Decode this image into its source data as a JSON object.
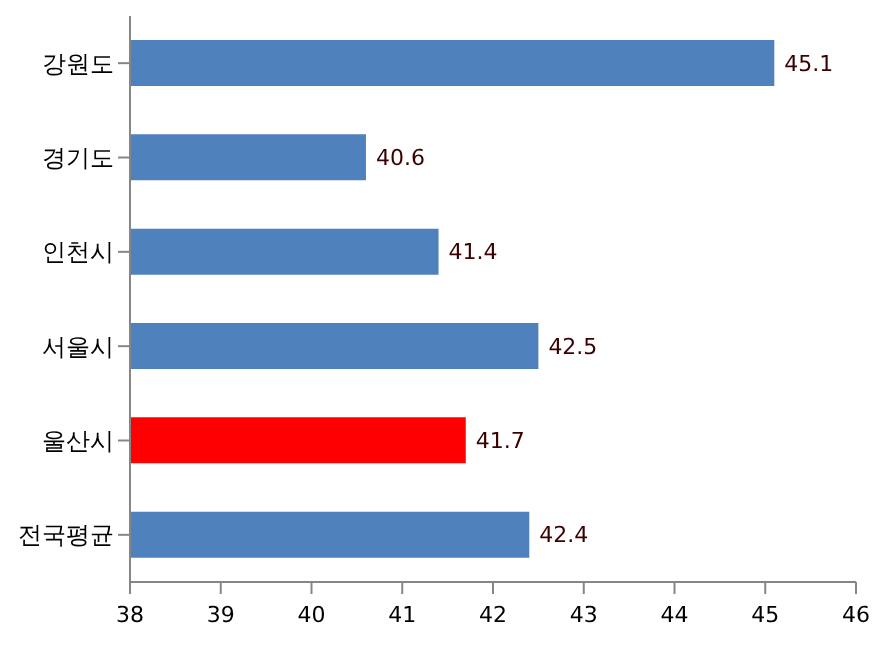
{
  "chart_data": {
    "type": "bar",
    "orientation": "horizontal",
    "categories": [
      "강원도",
      "경기도",
      "인천시",
      "서울시",
      "울산시",
      "전국평균"
    ],
    "values": [
      45.1,
      40.6,
      41.4,
      42.5,
      41.7,
      42.4
    ],
    "colors": [
      "#4f81bd",
      "#4f81bd",
      "#4f81bd",
      "#4f81bd",
      "#ff0000",
      "#4f81bd"
    ],
    "xlim": [
      38,
      46
    ],
    "xticks": [
      38,
      39,
      40,
      41,
      42,
      43,
      44,
      45,
      46
    ],
    "data_labels": true
  }
}
